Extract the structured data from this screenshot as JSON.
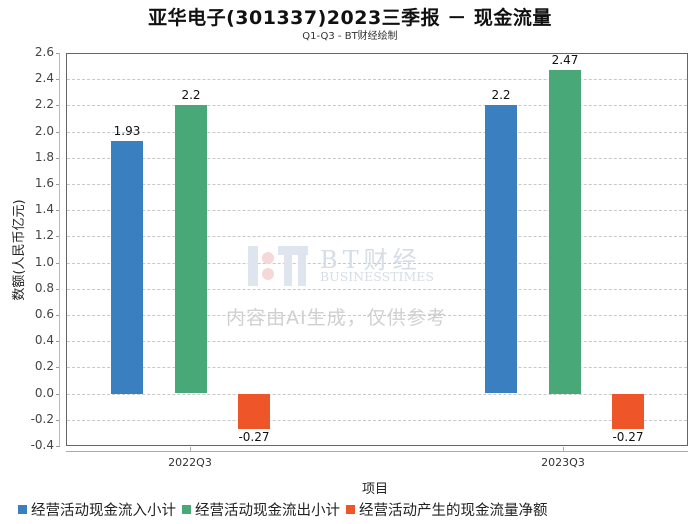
{
  "chart_data": {
    "type": "bar",
    "title": "亚华电子(301337)2023三季报 － 现金流量",
    "subtitle": "Q1-Q3 - BT财经绘制",
    "xlabel": "项目",
    "ylabel": "数额(人民币亿元)",
    "ylim": [
      -0.4,
      2.6
    ],
    "yticks": [
      "2.6",
      "2.4",
      "2.2",
      "2.0",
      "1.8",
      "1.6",
      "1.4",
      "1.2",
      "1.0",
      "0.8",
      "0.6",
      "0.4",
      "0.2",
      "0.0",
      "-0.2",
      "-0.4"
    ],
    "grid": true,
    "legend_position": "bottom",
    "categories": [
      "2022Q3",
      "2023Q3"
    ],
    "series": [
      {
        "name": "经营活动现金流入小计",
        "color": "#3a80c0",
        "values": [
          1.93,
          2.2
        ],
        "labels": [
          "1.93",
          "2.2"
        ]
      },
      {
        "name": "经营活动现金流出小计",
        "color": "#48a878",
        "values": [
          2.2,
          2.47
        ],
        "labels": [
          "2.2",
          "2.47"
        ]
      },
      {
        "name": "经营活动产生的现金流量净额",
        "color": "#ee5528",
        "values": [
          -0.27,
          -0.27
        ],
        "labels": [
          "-0.27",
          "-0.27"
        ]
      }
    ]
  },
  "watermark": {
    "brand": "BT财经",
    "brand_en": "BUSINESSTIMES",
    "notice": "内容由AI生成，仅供参考"
  }
}
